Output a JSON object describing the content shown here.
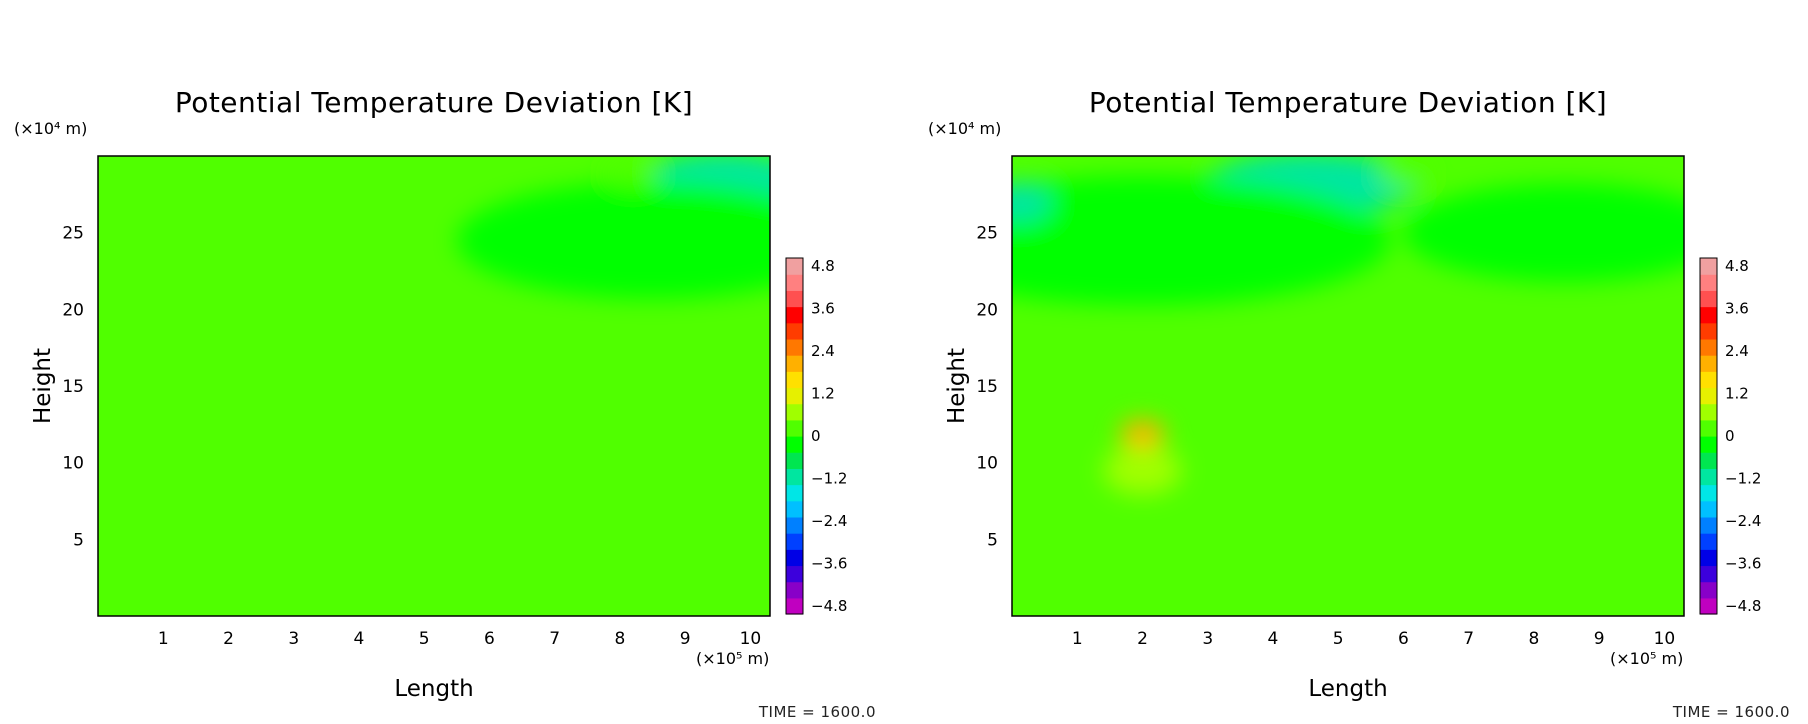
{
  "chart_data": [
    {
      "type": "heatmap",
      "title": "Potential Temperature Deviation [K]",
      "xlabel": "Length",
      "ylabel": "Height",
      "x_unit": "(×10⁵ m)",
      "y_unit": "(×10⁴ m)",
      "xlim": [
        0,
        10.3
      ],
      "ylim": [
        0,
        30
      ],
      "xticks": [
        "1",
        "2",
        "3",
        "4",
        "5",
        "6",
        "7",
        "8",
        "9",
        "10"
      ],
      "yticks": [
        "5",
        "10",
        "15",
        "20",
        "25"
      ],
      "colorbar": {
        "range": [
          -4.8,
          4.8
        ],
        "labels": [
          "4.8",
          "3.6",
          "2.4",
          "1.2",
          "0",
          "−1.2",
          "−2.4",
          "−3.6",
          "−4.8"
        ],
        "colors": [
          "#c000c0",
          "#8800c8",
          "#3c00dc",
          "#0000e6",
          "#0040ff",
          "#0080ff",
          "#00c0ff",
          "#00e6e6",
          "#00e6a0",
          "#00e650",
          "#00ff00",
          "#50ff00",
          "#a0ff00",
          "#e6f000",
          "#ffe000",
          "#ffb000",
          "#ff7800",
          "#ff3c00",
          "#ff0000",
          "#ff5050",
          "#ff8080",
          "#f0a0a0"
        ]
      },
      "time_label": "TIME = 1600.0",
      "background_value": 0,
      "features": [
        {
          "x": 9.6,
          "y": 28.2,
          "rx": 1.3,
          "ry": 2.0,
          "value": -1.1
        },
        {
          "x": 8.5,
          "y": 24.5,
          "rx": 3.0,
          "ry": 3.8,
          "value": -0.35
        },
        {
          "x": 8.2,
          "y": 28.8,
          "rx": 0.4,
          "ry": 0.8,
          "value": 0.3
        }
      ]
    },
    {
      "type": "heatmap",
      "title": "Potential Temperature Deviation [K]",
      "xlabel": "Length",
      "ylabel": "Height",
      "x_unit": "(×10⁵ m)",
      "y_unit": "(×10⁴ m)",
      "xlim": [
        0,
        10.3
      ],
      "ylim": [
        0,
        30
      ],
      "xticks": [
        "1",
        "2",
        "3",
        "4",
        "5",
        "6",
        "7",
        "8",
        "9",
        "10"
      ],
      "yticks": [
        "5",
        "10",
        "15",
        "20",
        "25"
      ],
      "colorbar": {
        "range": [
          -4.8,
          4.8
        ],
        "labels": [
          "4.8",
          "3.6",
          "2.4",
          "1.2",
          "0",
          "−1.2",
          "−2.4",
          "−3.6",
          "−4.8"
        ],
        "colors": [
          "#c000c0",
          "#8800c8",
          "#3c00dc",
          "#0000e6",
          "#0040ff",
          "#0080ff",
          "#00c0ff",
          "#00e6e6",
          "#00e6a0",
          "#00e650",
          "#00ff00",
          "#50ff00",
          "#a0ff00",
          "#e6f000",
          "#ffe000",
          "#ffb000",
          "#ff7800",
          "#ff3c00",
          "#ff0000",
          "#ff5050",
          "#ff8080",
          "#f0a0a0"
        ]
      },
      "time_label": "TIME = 1600.0",
      "background_value": 0,
      "features": [
        {
          "x": 4.6,
          "y": 28.2,
          "rx": 1.6,
          "ry": 2.0,
          "value": -1.0
        },
        {
          "x": 2.0,
          "y": 24.5,
          "rx": 3.8,
          "ry": 4.2,
          "value": -0.35
        },
        {
          "x": 8.5,
          "y": 25.0,
          "rx": 2.5,
          "ry": 3.2,
          "value": -0.25
        },
        {
          "x": 0.1,
          "y": 27.0,
          "rx": 0.5,
          "ry": 1.3,
          "value": -0.9
        },
        {
          "x": 2.0,
          "y": 11.9,
          "rx": 0.35,
          "ry": 0.9,
          "value": 2.0
        },
        {
          "x": 2.0,
          "y": 9.5,
          "rx": 0.6,
          "ry": 1.6,
          "value": 0.8
        },
        {
          "x": 6.0,
          "y": 28.8,
          "rx": 0.4,
          "ry": 0.8,
          "value": 0.3
        }
      ]
    }
  ]
}
